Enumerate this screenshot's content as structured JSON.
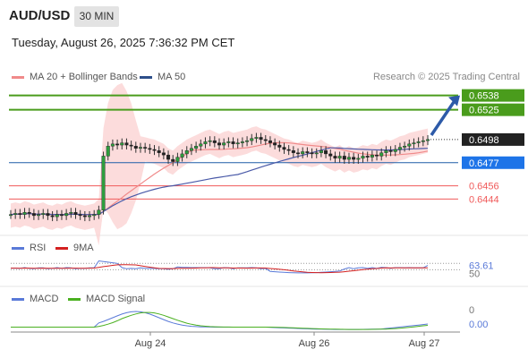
{
  "header": {
    "symbol": "AUD/USD",
    "timeframe": "30 MIN",
    "datetime": "Tuesday, August 26, 2025 7:36:32 PM CET"
  },
  "legend": {
    "ma20": "MA 20 + Bollinger Bands",
    "ma50": "MA 50",
    "credit": "Research © 2025 Trading Central",
    "rsi": "RSI",
    "rsi_ma": "9MA",
    "macd": "MACD",
    "macd_signal": "MACD Signal"
  },
  "colors": {
    "resistance": "#4a9c1c",
    "support": "#f05a5a",
    "pivot": "#1f5fa8",
    "price_box": "#222222",
    "pivot_box": "#1e74e8",
    "ma20": "#f08a8a",
    "ma50": "#4a5aa8",
    "bands": "#fbd0d0",
    "rsi": "#5a7ad8",
    "rsi_ma": "#d42020",
    "macd": "#5a7ad8",
    "macd_signal": "#4ab020"
  },
  "chart_data": [
    {
      "type": "candlestick",
      "levels": [
        {
          "value": "0.6538",
          "kind": "resistance"
        },
        {
          "value": "0.6525",
          "kind": "resistance"
        },
        {
          "value": "0.6498",
          "kind": "last-price"
        },
        {
          "value": "0.6477",
          "kind": "pivot"
        },
        {
          "value": "0.6456",
          "kind": "support"
        },
        {
          "value": "0.6444",
          "kind": "support"
        }
      ],
      "x_ticks": [
        "Aug 24",
        "Aug 26",
        "Aug 27"
      ],
      "ylim": [
        0.642,
        0.6545
      ],
      "close": [
        0.643,
        0.6431,
        0.643,
        0.6432,
        0.6431,
        0.6429,
        0.643,
        0.6431,
        0.6429,
        0.6428,
        0.643,
        0.6429,
        0.6431,
        0.6432,
        0.643,
        0.6429,
        0.6428,
        0.6429,
        0.643,
        0.6434,
        0.6483,
        0.6492,
        0.6494,
        0.6493,
        0.6495,
        0.6493,
        0.6492,
        0.649,
        0.6491,
        0.649,
        0.6489,
        0.6488,
        0.6486,
        0.6484,
        0.648,
        0.6478,
        0.6482,
        0.6485,
        0.6488,
        0.649,
        0.6492,
        0.6494,
        0.6496,
        0.6497,
        0.6495,
        0.6493,
        0.6495,
        0.6496,
        0.6494,
        0.6495,
        0.6496,
        0.6497,
        0.6499,
        0.65,
        0.6498,
        0.6497,
        0.6495,
        0.6493,
        0.6491,
        0.6489,
        0.6488,
        0.6486,
        0.6485,
        0.6487,
        0.6486,
        0.6485,
        0.6486,
        0.6488,
        0.6485,
        0.6483,
        0.6481,
        0.6483,
        0.648,
        0.6482,
        0.648,
        0.6481,
        0.6483,
        0.6482,
        0.6484,
        0.6483,
        0.6486,
        0.6488,
        0.6487,
        0.6489,
        0.6491,
        0.6492,
        0.6494,
        0.6495,
        0.6496,
        0.6497,
        0.6498
      ],
      "rsi": {
        "last": "63.61",
        "ticks": [
          "50"
        ],
        "ylim": [
          20,
          85
        ]
      },
      "macd": {
        "last": "0.00",
        "ticks": [
          "0"
        ]
      }
    }
  ]
}
